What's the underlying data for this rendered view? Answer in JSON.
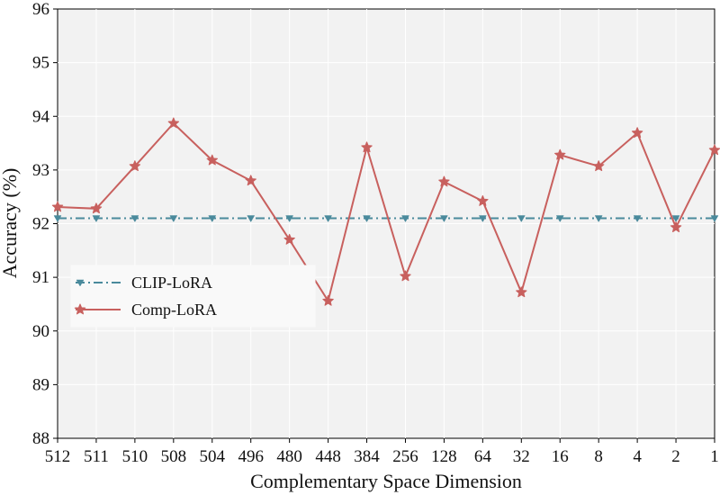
{
  "chart_data": {
    "type": "line",
    "title": "",
    "xlabel": "Complementary Space Dimension",
    "ylabel": "Accuracy (%)",
    "categories": [
      "512",
      "511",
      "510",
      "508",
      "504",
      "496",
      "480",
      "448",
      "384",
      "256",
      "128",
      "64",
      "32",
      "16",
      "8",
      "4",
      "2",
      "1"
    ],
    "ylim": [
      88,
      96
    ],
    "yticks": [
      88,
      89,
      90,
      91,
      92,
      93,
      94,
      95,
      96
    ],
    "grid": true,
    "legend_position": "center-left",
    "series": [
      {
        "name": "CLIP-LoRA",
        "color": "#4a8a9c",
        "line_style": "dash-dot",
        "marker": "triangle-down",
        "values": [
          92.1,
          92.1,
          92.1,
          92.1,
          92.1,
          92.1,
          92.1,
          92.1,
          92.1,
          92.1,
          92.1,
          92.1,
          92.1,
          92.1,
          92.1,
          92.1,
          92.1,
          92.1
        ]
      },
      {
        "name": "Comp-LoRA",
        "color": "#c8605e",
        "line_style": "solid",
        "marker": "star",
        "values": [
          92.31,
          92.28,
          93.07,
          93.87,
          93.18,
          92.8,
          91.7,
          90.56,
          93.42,
          91.02,
          92.78,
          92.42,
          90.72,
          93.28,
          93.07,
          93.69,
          91.93,
          93.37
        ]
      }
    ]
  }
}
